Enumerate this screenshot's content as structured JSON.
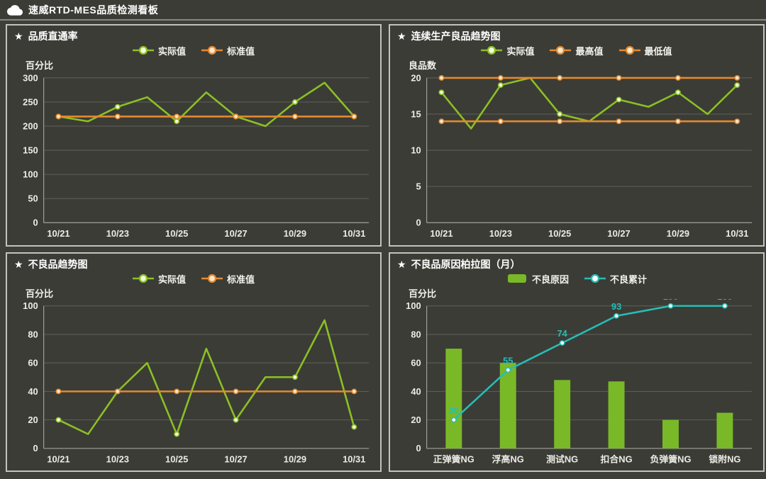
{
  "header": {
    "title": "速威RTD-MES品质检测看板",
    "icon": "cloud-icon"
  },
  "colors": {
    "page_bg": "#3e3f39",
    "panel_bg": "#3b3c36",
    "panel_border": "#c2c3bb",
    "grid_line": "#5e6158",
    "axis_line": "#9fa096",
    "tick_text": "#ececE7",
    "title_text": "#ffffff",
    "actual_green": "#8cc024",
    "standard_orange": "#e5892f",
    "bar_green": "#79b928",
    "cumulative_teal": "#27bdb5"
  },
  "chart_data": [
    {
      "type": "line",
      "title": "品质直通率",
      "ylabel": "百分比",
      "categories": [
        "10/21",
        "10/22",
        "10/23",
        "10/24",
        "10/25",
        "10/26",
        "10/27",
        "10/28",
        "10/29",
        "10/30",
        "10/31"
      ],
      "x_tick_every": 2,
      "ylim": [
        0,
        300
      ],
      "ytick_step": 50,
      "grid": true,
      "legend_position": "top-center",
      "series": [
        {
          "name": "实际值",
          "kind": "line",
          "color": "#8cc024",
          "marker_fill": "#f2fadf",
          "marker_every": 2,
          "values": [
            220,
            210,
            240,
            260,
            210,
            270,
            220,
            200,
            250,
            290,
            220
          ]
        },
        {
          "name": "标准值",
          "kind": "line",
          "color": "#e5892f",
          "marker_fill": "#fbe7c8",
          "marker_every": 2,
          "values": [
            220,
            220,
            220,
            220,
            220,
            220,
            220,
            220,
            220,
            220,
            220
          ]
        }
      ]
    },
    {
      "type": "line",
      "title": "连续生产良品趋势图",
      "ylabel": "良品数",
      "categories": [
        "10/21",
        "10/22",
        "10/23",
        "10/24",
        "10/25",
        "10/26",
        "10/27",
        "10/28",
        "10/29",
        "10/30",
        "10/31"
      ],
      "x_tick_every": 2,
      "ylim": [
        0,
        20
      ],
      "ytick_step": 5,
      "grid": true,
      "legend_position": "top-center",
      "series": [
        {
          "name": "实际值",
          "kind": "line",
          "color": "#8cc024",
          "marker_fill": "#f2fadf",
          "marker_every": 2,
          "values": [
            18,
            13,
            19,
            20,
            15,
            14,
            17,
            16,
            18,
            15,
            19
          ]
        },
        {
          "name": "最高值",
          "kind": "line",
          "color": "#e5892f",
          "marker_fill": "#fbe7c8",
          "marker_every": 2,
          "values": [
            20,
            20,
            20,
            20,
            20,
            20,
            20,
            20,
            20,
            20,
            20
          ]
        },
        {
          "name": "最低值",
          "kind": "line",
          "color": "#e5892f",
          "marker_fill": "#fbe7c8",
          "marker_every": 2,
          "values": [
            14,
            14,
            14,
            14,
            14,
            14,
            14,
            14,
            14,
            14,
            14
          ]
        }
      ]
    },
    {
      "type": "line",
      "title": "不良品趋势图",
      "ylabel": "百分比",
      "categories": [
        "10/21",
        "10/22",
        "10/23",
        "10/24",
        "10/25",
        "10/26",
        "10/27",
        "10/28",
        "10/29",
        "10/30",
        "10/31"
      ],
      "x_tick_every": 2,
      "ylim": [
        0,
        100
      ],
      "ytick_step": 20,
      "grid": true,
      "legend_position": "top-center",
      "series": [
        {
          "name": "实际值",
          "kind": "line",
          "color": "#8cc024",
          "marker_fill": "#f2fadf",
          "marker_every": 2,
          "values": [
            20,
            10,
            40,
            60,
            10,
            70,
            20,
            50,
            50,
            90,
            15
          ]
        },
        {
          "name": "标准值",
          "kind": "line",
          "color": "#e5892f",
          "marker_fill": "#fbe7c8",
          "marker_every": 2,
          "values": [
            40,
            40,
            40,
            40,
            40,
            40,
            40,
            40,
            40,
            40,
            40
          ]
        }
      ]
    },
    {
      "type": "pareto",
      "title": "不良品原因柏拉图（月）",
      "ylabel": "百分比",
      "categories": [
        "正弹簧NG",
        "浮高NG",
        "测试NG",
        "扣合NG",
        "负弹簧NG",
        "锁附NG"
      ],
      "x_tick_every": 1,
      "ylim": [
        0,
        100
      ],
      "ytick_step": 20,
      "grid": true,
      "legend_position": "top-center",
      "series": [
        {
          "name": "不良原因",
          "kind": "bar",
          "color": "#79b928",
          "values": [
            70,
            60,
            48,
            47,
            20,
            25
          ]
        },
        {
          "name": "不良累计",
          "kind": "line",
          "color": "#27bdb5",
          "marker_fill": "#ffffff",
          "marker_every": 1,
          "show_labels": true,
          "values": [
            20,
            55,
            74,
            93,
            100,
            100
          ]
        }
      ]
    }
  ]
}
